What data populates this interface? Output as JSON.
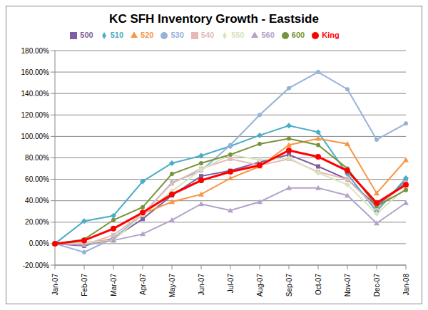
{
  "chart_data": {
    "type": "line",
    "title": "KC SFH Inventory Growth - Eastside",
    "categories": [
      "Jan-07",
      "Feb-07",
      "Mar-07",
      "Apr-07",
      "May-07",
      "Jun-07",
      "Jul-07",
      "Aug-07",
      "Sep-07",
      "Oct-07",
      "Nov-07",
      "Dec-07",
      "Jan-08"
    ],
    "series": [
      {
        "name": "500",
        "color": "#7f5f9f",
        "marker": "square",
        "values": [
          0,
          -2,
          5,
          23,
          45,
          63,
          68,
          76,
          83,
          72,
          60,
          35,
          58
        ]
      },
      {
        "name": "510",
        "color": "#4bacc6",
        "marker": "diamond",
        "values": [
          0,
          21,
          26,
          58,
          75,
          82,
          91,
          101,
          110,
          104,
          65,
          30,
          61
        ]
      },
      {
        "name": "520",
        "color": "#f79646",
        "marker": "triangle",
        "values": [
          0,
          1,
          4,
          28,
          39,
          46,
          61,
          72,
          92,
          98,
          93,
          47,
          78
        ]
      },
      {
        "name": "530",
        "color": "#95b3d7",
        "marker": "circle",
        "values": [
          0,
          -8,
          5,
          27,
          57,
          68,
          92,
          120,
          145,
          160,
          144,
          97,
          112
        ]
      },
      {
        "name": "540",
        "color": "#e6b9b8",
        "marker": "square",
        "values": [
          0,
          -1,
          8,
          28,
          56,
          70,
          79,
          73,
          79,
          67,
          60,
          33,
          57
        ]
      },
      {
        "name": "550",
        "color": "#d7e4bd",
        "marker": "diamond",
        "values": [
          0,
          1,
          3,
          27,
          49,
          69,
          83,
          78,
          80,
          66,
          55,
          28,
          52
        ]
      },
      {
        "name": "560",
        "color": "#b3a2c7",
        "marker": "triangle",
        "values": [
          0,
          -1,
          3,
          9,
          22,
          37,
          31,
          39,
          52,
          52,
          45,
          19,
          38
        ]
      },
      {
        "name": "600",
        "color": "#77933c",
        "marker": "circle",
        "values": [
          0,
          4,
          22,
          34,
          65,
          75,
          83,
          93,
          98,
          92,
          70,
          35,
          50
        ]
      },
      {
        "name": "King",
        "color": "#ff0000",
        "marker": "circle",
        "values": [
          0,
          3,
          14,
          29,
          46,
          59,
          67,
          73,
          87,
          81,
          68,
          38,
          55
        ]
      }
    ],
    "ylim": [
      -20,
      180
    ],
    "yticks": [
      {
        "value": -20,
        "label": "-20.00%"
      },
      {
        "value": 0,
        "label": "0.00%"
      },
      {
        "value": 20,
        "label": "20.00%"
      },
      {
        "value": 40,
        "label": "40.00%"
      },
      {
        "value": 60,
        "label": "60.00%"
      },
      {
        "value": 80,
        "label": "80.00%"
      },
      {
        "value": 100,
        "label": "100.00%"
      },
      {
        "value": 120,
        "label": "120.00%"
      },
      {
        "value": 140,
        "label": "140.00%"
      },
      {
        "value": 160,
        "label": "160.00%"
      },
      {
        "value": 180,
        "label": "180.00%"
      }
    ],
    "grid": true,
    "legend": "top"
  }
}
